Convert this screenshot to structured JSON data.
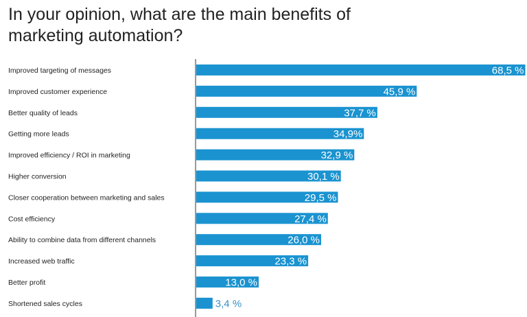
{
  "chart_data": {
    "type": "bar",
    "orientation": "horizontal",
    "title": "In your opinion, what are the main benefits of marketing automation?",
    "xlabel": "",
    "ylabel": "",
    "xlim": [
      0,
      70
    ],
    "grid": false,
    "bar_color": "#1a93d0",
    "categories": [
      "Improved targeting of messages",
      "Improved customer experience",
      "Better quality of leads",
      "Getting more leads",
      "Improved efficiency / ROI in marketing",
      "Higher conversion",
      "Closer cooperation between marketing and sales",
      "Cost efficiency",
      "Ability to combine data from different channels",
      "Increased web traffic",
      "Better profit",
      "Shortened sales cycles"
    ],
    "values": [
      68.5,
      45.9,
      37.7,
      34.9,
      32.9,
      30.1,
      29.5,
      27.4,
      26.0,
      23.3,
      13.0,
      3.4
    ],
    "data_labels": [
      "68,5 %",
      "45,9 %",
      "37,7 %",
      "34,9%",
      "32,9 %",
      "30,1 %",
      "29,5 %",
      "27,4 %",
      "26,0 %",
      "23,3 %",
      "13,0 %",
      "3,4 %"
    ]
  }
}
